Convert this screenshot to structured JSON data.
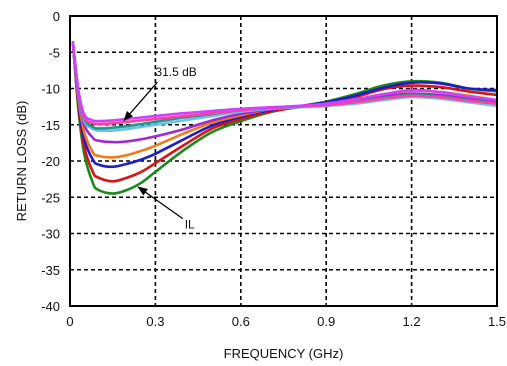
{
  "chart_data": {
    "type": "line",
    "title": "",
    "xlabel": "FREQUENCY (GHz)",
    "ylabel": "RETURN LOSS (dB)",
    "xlim": [
      0,
      1.5
    ],
    "ylim": [
      -40,
      0
    ],
    "xticks": [
      0,
      0.3,
      0.6,
      0.9,
      1.2,
      1.5
    ],
    "xtick_labels": [
      "0",
      "0.3",
      "0.6",
      "0.9",
      "1.2",
      "1.5"
    ],
    "yticks": [
      0,
      -5,
      -10,
      -15,
      -20,
      -25,
      -30,
      -35,
      -40
    ],
    "ytick_labels": [
      "0",
      "-5",
      "-10",
      "-15",
      "-20",
      "-25",
      "-30",
      "-35",
      "-40"
    ],
    "grid": true,
    "grid_style": "dashed",
    "annotations": [
      {
        "text": "31.5 dB",
        "x": 0.19,
        "y": -14.4,
        "text_x": 0.3,
        "text_y": -8.3
      },
      {
        "text": "IL",
        "x": 0.24,
        "y": -23.6,
        "text_x": 0.41,
        "text_y": -28.5
      }
    ],
    "series": [
      {
        "color": "#1a8a1a",
        "x": [
          0.01,
          0.03,
          0.05,
          0.08,
          0.1,
          0.15,
          0.2,
          0.25,
          0.3,
          0.4,
          0.5,
          0.6,
          0.7,
          0.8,
          0.9,
          1.0,
          1.1,
          1.2,
          1.3,
          1.4,
          1.5
        ],
        "y": [
          -3.5,
          -13,
          -19,
          -23,
          -24,
          -24.5,
          -24,
          -23,
          -21.5,
          -18.5,
          -16,
          -14.5,
          -13.3,
          -12.5,
          -11.8,
          -10.8,
          -9.6,
          -9,
          -9.2,
          -10,
          -10.4
        ]
      },
      {
        "color": "#dd1111",
        "x": [
          0.01,
          0.03,
          0.05,
          0.08,
          0.1,
          0.15,
          0.2,
          0.25,
          0.3,
          0.4,
          0.5,
          0.6,
          0.7,
          0.8,
          0.9,
          1.0,
          1.1,
          1.2,
          1.3,
          1.4,
          1.5
        ],
        "y": [
          -3.5,
          -12.5,
          -18,
          -21.5,
          -22.3,
          -22.8,
          -22.3,
          -21.5,
          -20.3,
          -17.8,
          -15.5,
          -14.2,
          -13.2,
          -12.6,
          -12,
          -11.2,
          -10.1,
          -9.6,
          -9.8,
          -10.4,
          -10.9
        ]
      },
      {
        "color": "#1c1ccf",
        "x": [
          0.01,
          0.03,
          0.05,
          0.08,
          0.1,
          0.15,
          0.2,
          0.25,
          0.3,
          0.4,
          0.5,
          0.6,
          0.7,
          0.8,
          0.9,
          1.0,
          1.1,
          1.2,
          1.3,
          1.4,
          1.5
        ],
        "y": [
          -3.5,
          -12,
          -17,
          -19.8,
          -20.5,
          -20.8,
          -20.4,
          -19.8,
          -19,
          -17,
          -15.1,
          -13.9,
          -13,
          -12.5,
          -11.9,
          -11,
          -9.9,
          -9.2,
          -9.3,
          -10,
          -10.2
        ]
      },
      {
        "color": "#f07a1a",
        "x": [
          0.01,
          0.03,
          0.05,
          0.08,
          0.1,
          0.15,
          0.2,
          0.25,
          0.3,
          0.4,
          0.5,
          0.6,
          0.7,
          0.8,
          0.9,
          1.0,
          1.1,
          1.2,
          1.3,
          1.4,
          1.5
        ],
        "y": [
          -3.5,
          -11.5,
          -16,
          -18.8,
          -19.3,
          -19.5,
          -19.2,
          -18.6,
          -17.9,
          -16.2,
          -14.7,
          -13.7,
          -12.9,
          -12.6,
          -12.1,
          -11.5,
          -10.8,
          -10.3,
          -10.5,
          -11,
          -11.6
        ]
      },
      {
        "color": "#9e2bd0",
        "x": [
          0.01,
          0.03,
          0.05,
          0.08,
          0.1,
          0.15,
          0.2,
          0.25,
          0.3,
          0.4,
          0.5,
          0.6,
          0.7,
          0.8,
          0.9,
          1.0,
          1.1,
          1.2,
          1.3,
          1.4,
          1.5
        ],
        "y": [
          -3.5,
          -11,
          -15,
          -16.8,
          -17.2,
          -17.4,
          -17.3,
          -17,
          -16.6,
          -15.6,
          -14.4,
          -13.5,
          -12.9,
          -12.6,
          -12.2,
          -11.7,
          -11.1,
          -10.7,
          -10.9,
          -11.4,
          -11.9
        ]
      },
      {
        "color": "#6ec0e8",
        "x": [
          0.01,
          0.03,
          0.05,
          0.08,
          0.1,
          0.15,
          0.2,
          0.25,
          0.3,
          0.4,
          0.5,
          0.6,
          0.7,
          0.8,
          0.9,
          1.0,
          1.1,
          1.2,
          1.3,
          1.4,
          1.5
        ],
        "y": [
          -3.5,
          -10.8,
          -14.5,
          -15.6,
          -15.8,
          -15.8,
          -15.6,
          -15.3,
          -15,
          -14.4,
          -13.8,
          -13.2,
          -12.8,
          -12.6,
          -12.4,
          -12.1,
          -11.6,
          -11.2,
          -11.4,
          -11.9,
          -12.4
        ]
      },
      {
        "color": "#1a9a8a",
        "x": [
          0.01,
          0.03,
          0.05,
          0.08,
          0.1,
          0.15,
          0.2,
          0.25,
          0.3,
          0.4,
          0.5,
          0.6,
          0.7,
          0.8,
          0.9,
          1.0,
          1.1,
          1.2,
          1.3,
          1.4,
          1.5
        ],
        "y": [
          -3.5,
          -10.6,
          -14.2,
          -15.3,
          -15.5,
          -15.4,
          -15.2,
          -14.9,
          -14.6,
          -14,
          -13.5,
          -13,
          -12.7,
          -12.5,
          -12.2,
          -11.8,
          -11.3,
          -10.9,
          -11.1,
          -11.6,
          -12
        ]
      },
      {
        "color": "#ff3ea0",
        "x": [
          0.01,
          0.03,
          0.05,
          0.08,
          0.1,
          0.15,
          0.2,
          0.25,
          0.3,
          0.4,
          0.5,
          0.6,
          0.7,
          0.8,
          0.9,
          1.0,
          1.1,
          1.2,
          1.3,
          1.4,
          1.5
        ],
        "y": [
          -3.5,
          -10.5,
          -14,
          -14.8,
          -14.9,
          -14.8,
          -14.6,
          -14.4,
          -14.2,
          -13.8,
          -13.4,
          -13,
          -12.7,
          -12.5,
          -12.3,
          -11.9,
          -11.4,
          -11,
          -11.2,
          -11.7,
          -12.1
        ]
      },
      {
        "color": "#d040ff",
        "x": [
          0.01,
          0.03,
          0.05,
          0.08,
          0.1,
          0.15,
          0.2,
          0.25,
          0.3,
          0.4,
          0.5,
          0.6,
          0.7,
          0.8,
          0.9,
          1.0,
          1.1,
          1.2,
          1.3,
          1.4,
          1.5
        ],
        "y": [
          -3.5,
          -10.3,
          -13.6,
          -14.4,
          -14.5,
          -14.4,
          -14.2,
          -14,
          -13.8,
          -13.4,
          -13.1,
          -12.8,
          -12.6,
          -12.4,
          -12.1,
          -11.5,
          -10.8,
          -10.2,
          -10.5,
          -11.1,
          -11.6
        ]
      }
    ]
  }
}
